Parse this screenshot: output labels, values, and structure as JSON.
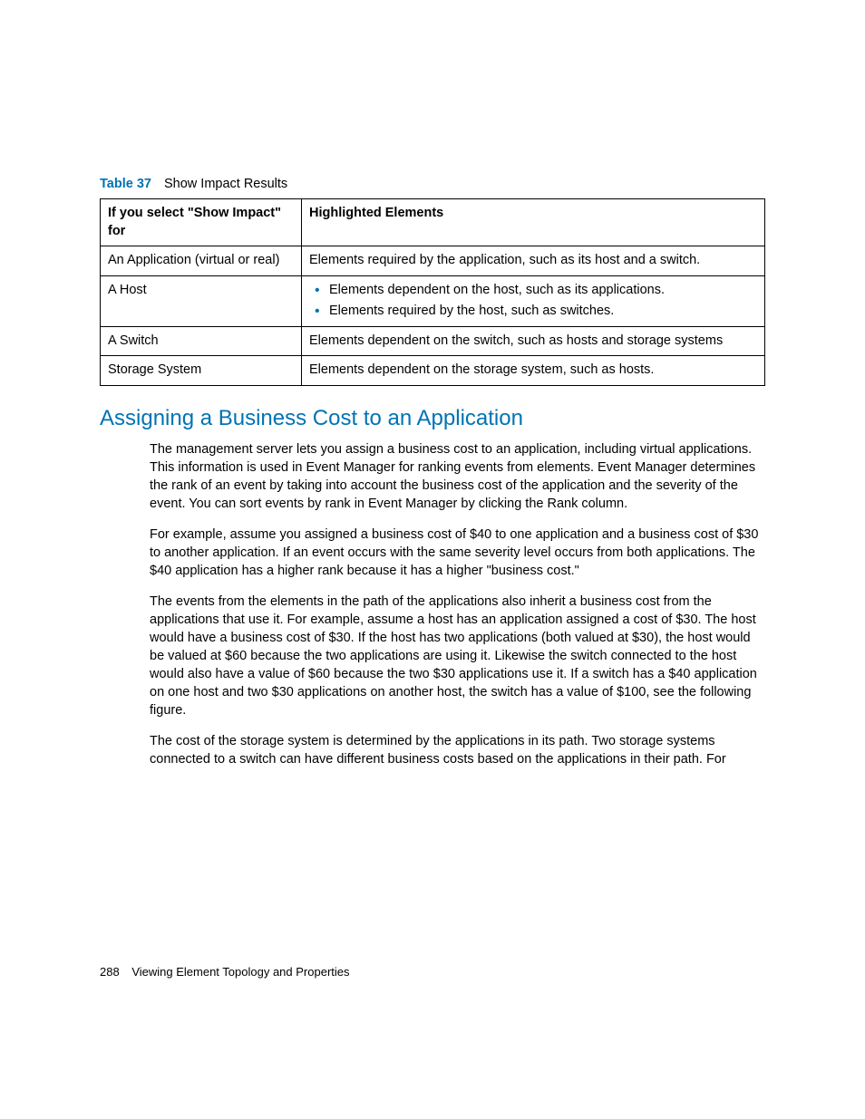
{
  "tableCaption": {
    "label": "Table 37",
    "text": "Show Impact Results"
  },
  "table": {
    "headers": [
      "If you select \"Show Impact\" for",
      "Highlighted Elements"
    ],
    "rows": [
      {
        "c0": "An Application (virtual or real)",
        "c1": "Elements required by the application, such as its host and a switch."
      },
      {
        "c0": "A Host",
        "c1_list": [
          "Elements dependent on the host, such as its applications.",
          "Elements required by the host, such as switches."
        ]
      },
      {
        "c0": "A Switch",
        "c1": "Elements dependent on the switch, such as hosts and storage systems"
      },
      {
        "c0": "Storage System",
        "c1": "Elements dependent on the storage system, such as hosts."
      }
    ]
  },
  "heading": "Assigning a Business Cost to an Application",
  "paragraphs": [
    "The management server lets you assign a business cost to an application, including virtual applications. This information is used in Event Manager for ranking events from elements. Event Manager determines the rank of an event by taking into account the business cost of the application and the severity of the event. You can sort events by rank in Event Manager by clicking the Rank column.",
    "For example, assume you assigned a business cost of $40 to one application and a business cost of $30 to another application. If an event occurs with the same severity level occurs from both applications. The $40 application has a higher rank because it has a higher \"business cost.\"",
    "The events from the elements in the path of the applications also inherit a business cost from the applications that use it. For example, assume a host has an application assigned a cost of $30. The host would have a business cost of $30. If the host has two applications (both valued at $30), the host would be valued at $60 because the two applications are using it. Likewise the switch connected to the host would also have a value of $60 because the two $30 applications use it. If a switch has a $40 application on one host and two $30 applications on another host, the switch has a value of $100, see the following figure.",
    "The cost of the storage system is determined by the applications in its path. Two storage systems connected to a switch can have different business costs based on the applications in their path. For"
  ],
  "footer": {
    "pageNumber": "288",
    "sectionTitle": "Viewing Element Topology and Properties"
  }
}
